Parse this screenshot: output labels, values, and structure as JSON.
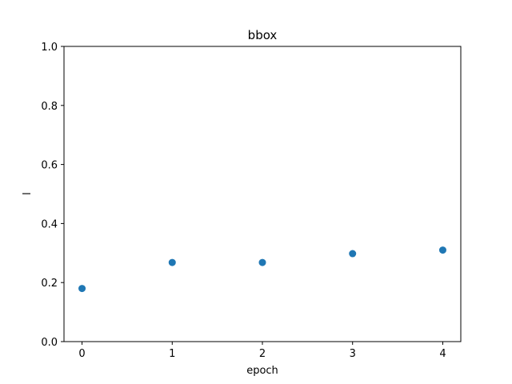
{
  "chart_data": {
    "type": "scatter",
    "title": "bbox",
    "xlabel": "epoch",
    "ylabel": "l",
    "x": [
      0,
      1,
      2,
      3,
      4
    ],
    "series": [
      {
        "values": [
          0.18,
          0.268,
          0.268,
          0.298,
          0.31
        ],
        "color": "#1f77b4"
      }
    ],
    "xlim": [
      -0.2,
      4.2
    ],
    "ylim": [
      0.0,
      1.0
    ],
    "xticks": [
      "0",
      "1",
      "2",
      "3",
      "4"
    ],
    "yticks": [
      "0.0",
      "0.2",
      "0.4",
      "0.6",
      "0.8",
      "1.0"
    ],
    "grid": false,
    "legend": "none"
  }
}
